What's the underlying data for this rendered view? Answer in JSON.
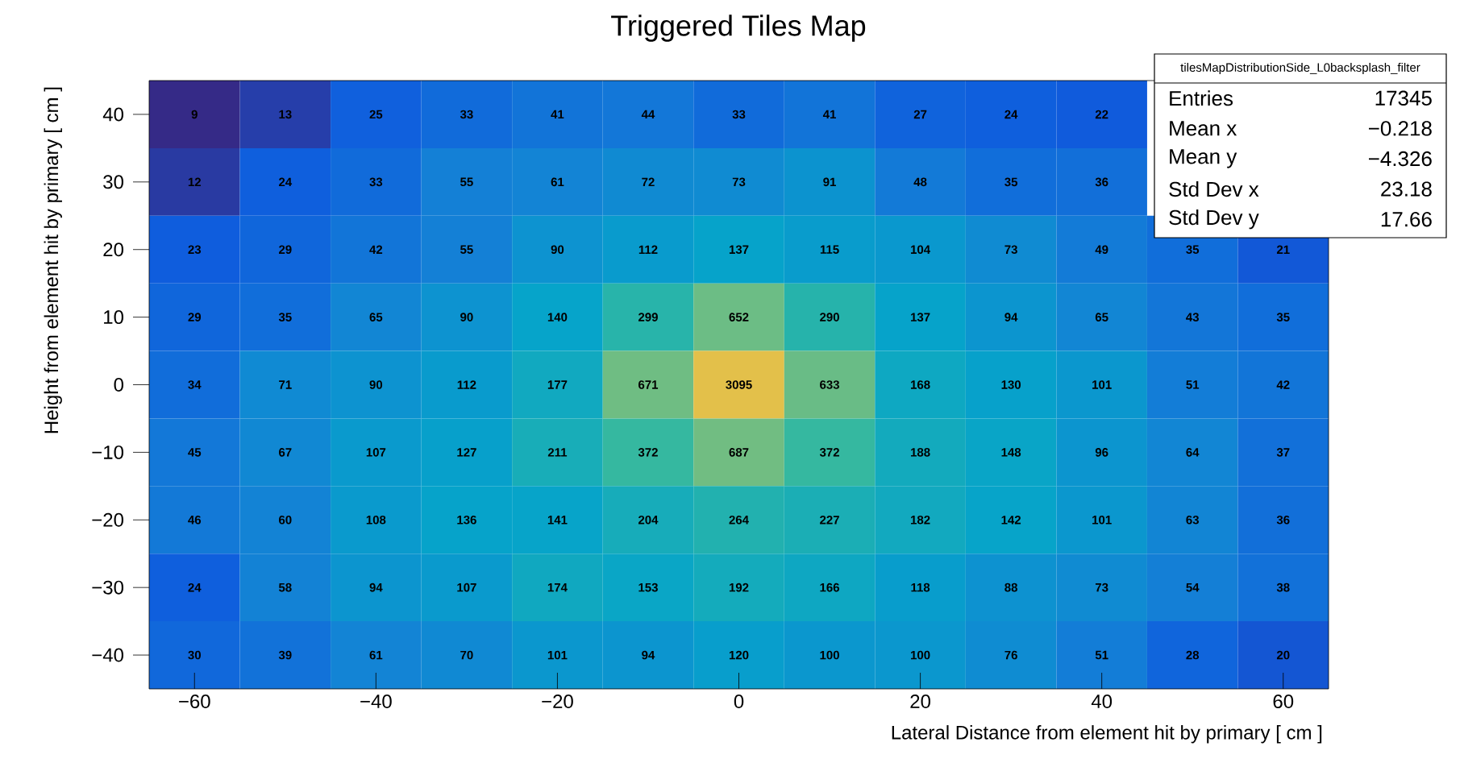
{
  "chart_data": {
    "type": "heatmap",
    "title": "Triggered Tiles Map",
    "xlabel": "Lateral Distance from element hit by primary [ cm ]",
    "ylabel": "Height from element hit by primary [ cm ]",
    "x": [
      -60,
      -50,
      -40,
      -30,
      -20,
      -10,
      0,
      10,
      20,
      30,
      40,
      50,
      60
    ],
    "y": [
      40,
      30,
      20,
      10,
      0,
      -10,
      -20,
      -30,
      -40
    ],
    "cells": [
      [
        9,
        13,
        25,
        33,
        41,
        44,
        33,
        41,
        27,
        24,
        22,
        null,
        null
      ],
      [
        12,
        24,
        33,
        55,
        61,
        72,
        73,
        91,
        48,
        35,
        36,
        null,
        null
      ],
      [
        23,
        29,
        42,
        55,
        90,
        112,
        137,
        115,
        104,
        73,
        49,
        35,
        21
      ],
      [
        29,
        35,
        65,
        90,
        140,
        299,
        652,
        290,
        137,
        94,
        65,
        43,
        35
      ],
      [
        34,
        71,
        90,
        112,
        177,
        671,
        3095,
        633,
        168,
        130,
        101,
        51,
        42
      ],
      [
        45,
        67,
        107,
        127,
        211,
        372,
        687,
        372,
        188,
        148,
        96,
        64,
        37
      ],
      [
        46,
        60,
        108,
        136,
        141,
        204,
        264,
        227,
        182,
        142,
        101,
        63,
        36
      ],
      [
        24,
        58,
        94,
        107,
        174,
        153,
        192,
        166,
        118,
        88,
        73,
        54,
        38
      ],
      [
        30,
        39,
        61,
        70,
        101,
        94,
        120,
        100,
        100,
        76,
        51,
        28,
        20
      ]
    ],
    "data_labels": true,
    "xlim": [
      -65,
      65
    ],
    "xticks": [
      {
        "value": -60,
        "label": "−60"
      },
      {
        "value": -40,
        "label": "−40"
      },
      {
        "value": -20,
        "label": "−20"
      },
      0,
      20,
      40,
      60
    ],
    "ylim": [
      -45,
      45
    ],
    "yticks": [
      {
        "value": -40,
        "label": "−40"
      },
      {
        "value": -30,
        "label": "−30"
      },
      {
        "value": -20,
        "label": "−20"
      },
      {
        "value": -10,
        "label": "−10"
      },
      0,
      10,
      20,
      30,
      40
    ],
    "annotations": [
      "tilesMapDistributionSide_L0backsplash_filter",
      "Entries",
      "17345",
      "Mean x",
      "−0.218",
      "Mean y",
      "−4.326",
      "Std Dev x",
      "23.18",
      "Std Dev y",
      "17.66"
    ]
  }
}
